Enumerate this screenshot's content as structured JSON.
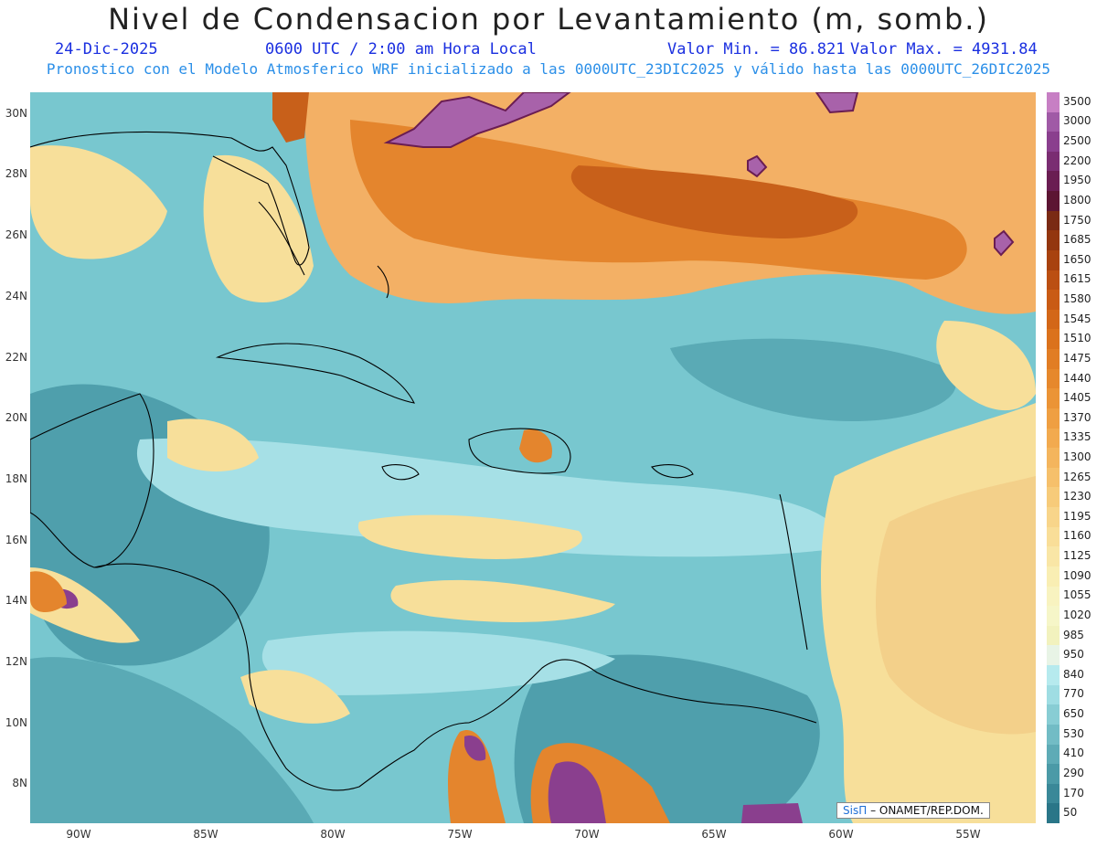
{
  "title": "Nivel de Condensacion por Levantamiento (m, somb.)",
  "header": {
    "date": "24-Dic-2025",
    "time": "0600 UTC / 2:00 am Hora Local",
    "min_label": "Valor Min. = 86.821",
    "max_label": "Valor Max. = 4931.84",
    "subtitle": "Pronostico con el Modelo Atmosferico WRF inicializado a las 0000UTC_23DIC2025 y válido hasta las  0000UTC_26DIC2025"
  },
  "axes": {
    "lat_labels": [
      "30N",
      "28N",
      "26N",
      "24N",
      "22N",
      "20N",
      "18N",
      "16N",
      "14N",
      "12N",
      "10N",
      "8N"
    ],
    "lon_labels": [
      "90W",
      "85W",
      "80W",
      "75W",
      "70W",
      "65W",
      "60W",
      "55W"
    ]
  },
  "colorbar": {
    "labels": [
      "3500",
      "3000",
      "2500",
      "2200",
      "1950",
      "1800",
      "1750",
      "1685",
      "1650",
      "1615",
      "1580",
      "1545",
      "1510",
      "1475",
      "1440",
      "1405",
      "1370",
      "1335",
      "1300",
      "1265",
      "1230",
      "1195",
      "1160",
      "1125",
      "1090",
      "1055",
      "1020",
      "985",
      "950",
      "840",
      "770",
      "650",
      "530",
      "410",
      "290",
      "170",
      "50"
    ],
    "colors": [
      "#c77fc4",
      "#a05aa6",
      "#8a3f8e",
      "#7a2d72",
      "#6a1d52",
      "#5c1533",
      "#7a2a14",
      "#93360f",
      "#a8420f",
      "#bb4f12",
      "#c95b15",
      "#d36718",
      "#db721c",
      "#e17d24",
      "#e6882c",
      "#eb9436",
      "#ef9f42",
      "#f2aa4f",
      "#f4b55d",
      "#f6c06b",
      "#f7cb7a",
      "#f8d58a",
      "#f9de98",
      "#f9e6a6",
      "#f9eeb3",
      "#f8f3c0",
      "#f6f6c8",
      "#f2f2be",
      "#e8f4e6",
      "#b6eaee",
      "#9fdde3",
      "#88cdd4",
      "#72bcc5",
      "#5eabb6",
      "#4b9aa7",
      "#3a8898",
      "#2a7688"
    ]
  },
  "credit": {
    "brand": "SisΠ",
    "text": "– ONAMET/REP.DOM."
  },
  "map_colors": {
    "ocean_base": "#78c7cf",
    "orange_light": "#f3b065",
    "orange_mid": "#e4852d",
    "orange_dark": "#c8601a",
    "yellow": "#f7df9a",
    "purple": "#a862aa",
    "teal_dark": "#3f93a0",
    "light_cyan": "#a6e0e6"
  }
}
